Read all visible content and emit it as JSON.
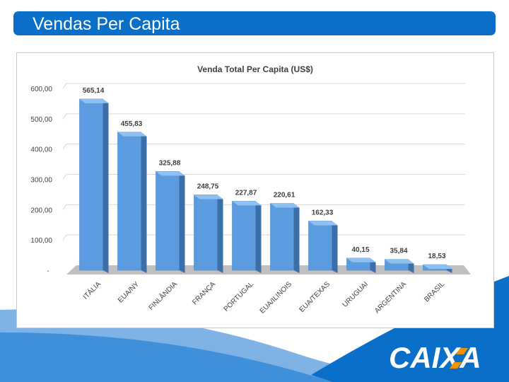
{
  "slide": {
    "title": "Vendas Per Capita"
  },
  "logo": {
    "text": "CAIXA",
    "color": "#ffffff"
  },
  "colors": {
    "title_bar": "#0a6fc9",
    "bar_front": "#5b9be0",
    "bar_side": "#3c6fa8",
    "bar_top": "#8ec0f0",
    "floor": "#bfbfbf"
  },
  "chart_data": {
    "type": "bar",
    "title": "Venda Total Per Capita (US$)",
    "categories": [
      "ITÁLIA",
      "EUA/NY",
      "FINLÂNDIA",
      "FRANÇA",
      "PORTUGAL",
      "EUA/ILINOIS",
      "EUA/TEXAS",
      "URUGUAI",
      "ARGENTINA",
      "BRASIL"
    ],
    "values": [
      565.14,
      455.83,
      325.88,
      248.75,
      227.87,
      220.61,
      162.33,
      40.15,
      35.84,
      18.53
    ],
    "value_labels": [
      "565,14",
      "455,83",
      "325,88",
      "248,75",
      "227,87",
      "220,61",
      "162,33",
      "40,15",
      "35,84",
      "18,53"
    ],
    "ylim": [
      0,
      600
    ],
    "yticks": [
      0,
      100,
      200,
      300,
      400,
      500,
      600
    ],
    "ytick_labels": [
      "-",
      "100,00",
      "200,00",
      "300,00",
      "400,00",
      "500,00",
      "600,00"
    ],
    "grid": true,
    "legend": "none"
  }
}
